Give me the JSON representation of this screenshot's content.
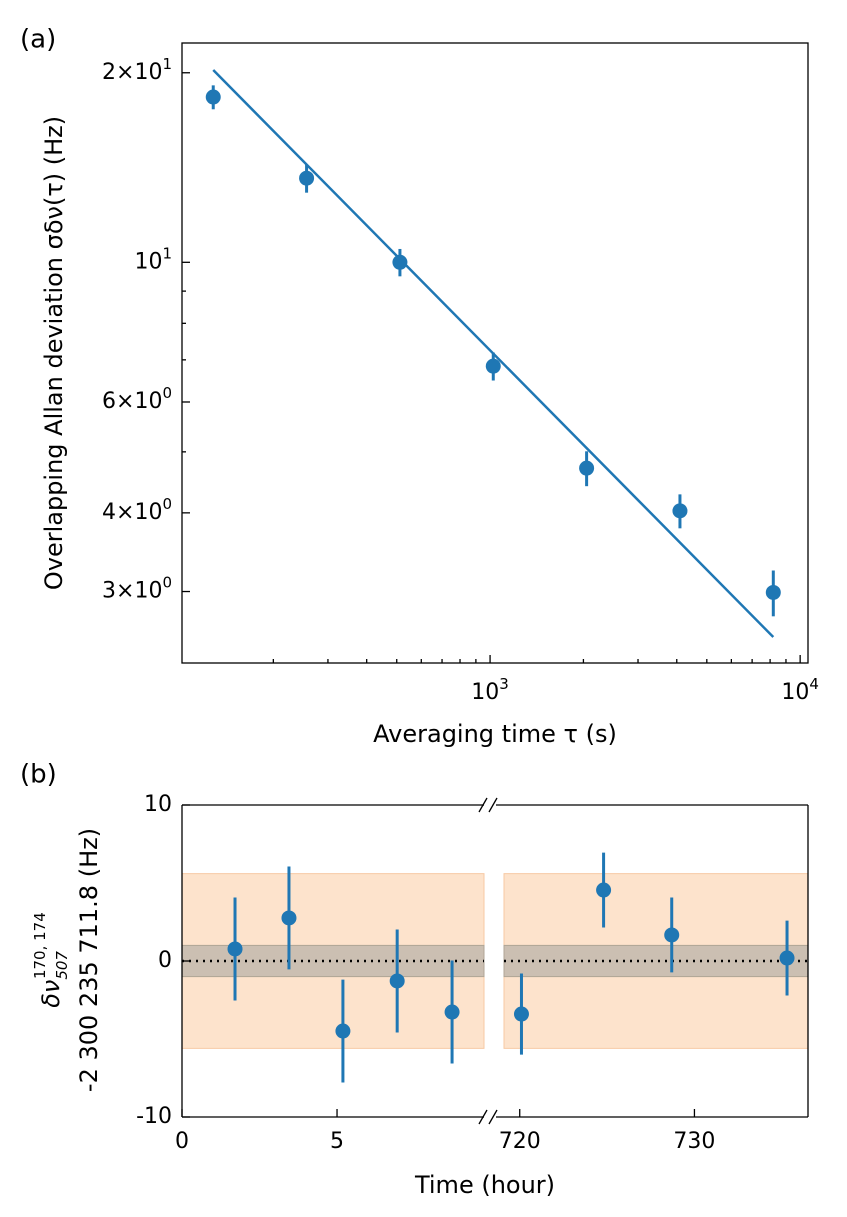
{
  "chart_data": [
    {
      "type": "loglog-errorbar",
      "panel": "(a)",
      "xlabel": "Averaging time τ (s)",
      "ylabel": "Overlapping Allan deviation σδν(τ) (Hz)",
      "color": "#1f77b4",
      "x": [
        128,
        256,
        512,
        1024,
        2048,
        4096,
        8192
      ],
      "values": [
        18.3,
        13.6,
        10.0,
        6.84,
        4.71,
        4.03,
        2.99
      ],
      "errors": [
        0.8,
        0.7,
        0.5,
        0.35,
        0.3,
        0.25,
        0.25
      ],
      "fit": {
        "x": [
          128,
          8192
        ],
        "values": [
          20.2,
          2.54
        ]
      },
      "xlim": [
        101.5,
        10600
      ],
      "ylim": [
        2.31,
        22.3
      ],
      "xticks": [
        {
          "value": 1000,
          "label": "10^3"
        },
        {
          "value": 10000,
          "label": "10^4"
        }
      ],
      "xminorticks": [
        200,
        300,
        400,
        500,
        600,
        700,
        800,
        900,
        2000,
        3000,
        4000,
        5000,
        6000,
        7000,
        8000,
        9000
      ],
      "yticks": [
        {
          "value": 3,
          "label": "3×10^0"
        },
        {
          "value": 4,
          "label": "4×10^0"
        },
        {
          "value": 6,
          "label": "6×10^0"
        },
        {
          "value": 10,
          "label": "10^1"
        },
        {
          "value": 20,
          "label": "2×10^1"
        }
      ],
      "yminorticks": [
        5,
        7,
        8,
        9
      ]
    },
    {
      "type": "broken-errorbar",
      "panel": "(b)",
      "xlabel": "Time (hour)",
      "ylabel_main": "δν",
      "ylabel_sup": "170, 174",
      "ylabel_sub": "507",
      "ylabel_line2": "-2 300 235 711.8 (Hz)",
      "color": "#1f77b4",
      "ylim": [
        -10,
        10
      ],
      "yticks": [
        -10,
        0,
        10
      ],
      "hline": 0,
      "bands": [
        {
          "lower": -5.6,
          "upper": 5.6,
          "color": "#fde3cc"
        },
        {
          "lower": -1.0,
          "upper": 1.0,
          "color": "#cbbfb2"
        }
      ],
      "segments": [
        {
          "xlim": [
            0,
            9.74
          ],
          "xticks": [
            0,
            5
          ],
          "x": [
            1.71,
            3.45,
            5.19,
            6.94,
            8.71
          ],
          "values": [
            0.77,
            2.76,
            -4.49,
            -1.28,
            -3.27
          ],
          "errors": [
            3.3,
            3.3,
            3.3,
            3.3,
            3.3
          ]
        },
        {
          "xlim": [
            719.1,
            736.5
          ],
          "xticks": [
            720,
            730
          ],
          "x": [
            720.1,
            724.8,
            728.7,
            735.3
          ],
          "values": [
            -3.4,
            4.55,
            1.67,
            0.19
          ],
          "errors": [
            2.6,
            2.4,
            2.4,
            2.4
          ]
        }
      ]
    }
  ]
}
